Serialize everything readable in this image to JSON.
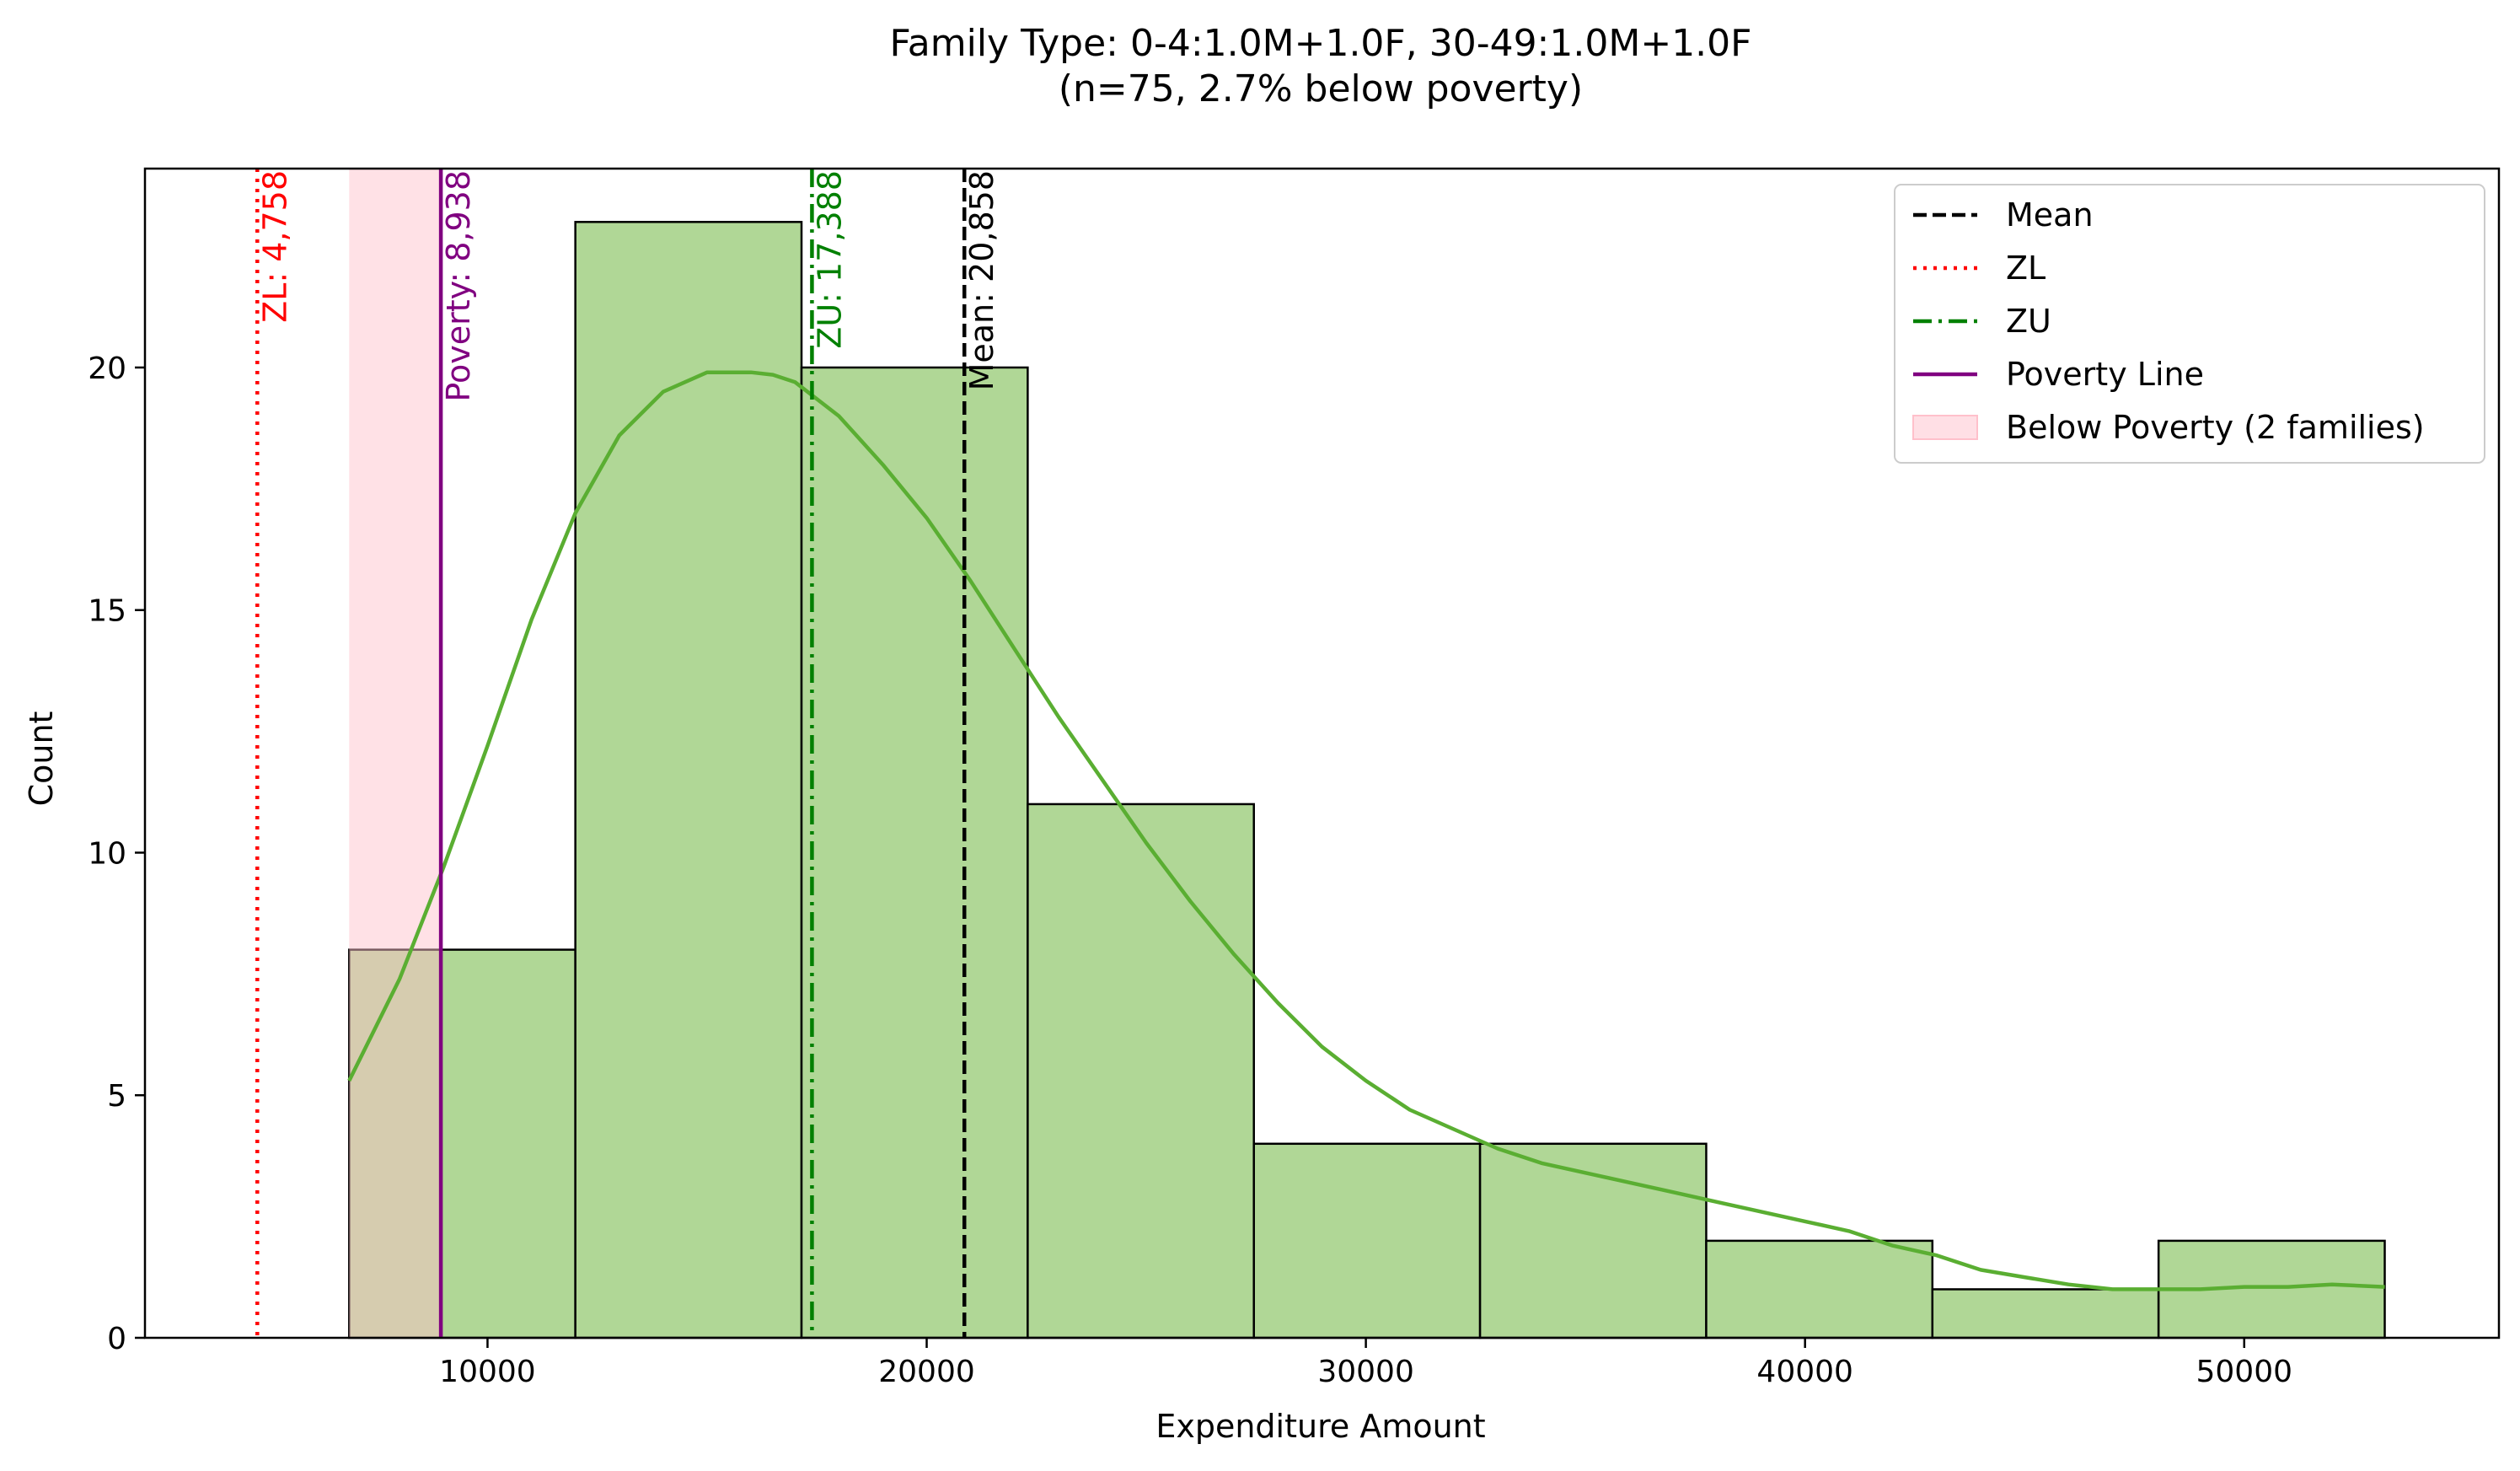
{
  "chart_data": {
    "type": "bar",
    "title": "Family Type: 0-4:1.0M+1.0F, 30-49:1.0M+1.0F",
    "subtitle": "(n=75, 2.7% below poverty)",
    "xlabel": "Expenditure Amount",
    "ylabel": "Count",
    "xlim": [
      2200,
      55800
    ],
    "ylim": [
      0,
      24.1
    ],
    "x_ticks": [
      {
        "value": 10000,
        "label": "10000"
      },
      {
        "value": 20000,
        "label": "20000"
      },
      {
        "value": 30000,
        "label": "30000"
      },
      {
        "value": 40000,
        "label": "40000"
      },
      {
        "value": 50000,
        "label": "50000"
      }
    ],
    "y_ticks": [
      {
        "value": 0,
        "label": "0"
      },
      {
        "value": 5,
        "label": "5"
      },
      {
        "value": 10,
        "label": "10"
      },
      {
        "value": 15,
        "label": "15"
      },
      {
        "value": 20,
        "label": "20"
      }
    ],
    "bins": [
      {
        "x0": 6850,
        "x1": 12000,
        "count": 8
      },
      {
        "x0": 12000,
        "x1": 17150,
        "count": 23
      },
      {
        "x0": 17150,
        "x1": 22300,
        "count": 20
      },
      {
        "x0": 22300,
        "x1": 27450,
        "count": 11
      },
      {
        "x0": 27450,
        "x1": 32600,
        "count": 4
      },
      {
        "x0": 32600,
        "x1": 37750,
        "count": 4
      },
      {
        "x0": 37750,
        "x1": 42900,
        "count": 2
      },
      {
        "x0": 42900,
        "x1": 48050,
        "count": 1
      },
      {
        "x0": 48050,
        "x1": 53200,
        "count": 2
      }
    ],
    "kde": {
      "x": [
        6850,
        8000,
        9000,
        10000,
        11000,
        12000,
        13000,
        14000,
        15000,
        16000,
        16500,
        17000,
        18000,
        19000,
        20000,
        21000,
        22000,
        23000,
        24000,
        25000,
        26000,
        27000,
        28000,
        29000,
        30000,
        31000,
        32000,
        33000,
        34000,
        35000,
        36000,
        37000,
        38000,
        39000,
        40000,
        41000,
        42000,
        43000,
        44000,
        45000,
        46000,
        47000,
        48000,
        49000,
        50000,
        51000,
        52000,
        53200
      ],
      "y": [
        5.3,
        7.4,
        9.7,
        12.2,
        14.8,
        17.0,
        18.6,
        19.5,
        19.9,
        19.9,
        19.85,
        19.7,
        19.0,
        18.0,
        16.9,
        15.6,
        14.2,
        12.8,
        11.5,
        10.2,
        9.0,
        7.9,
        6.9,
        6.0,
        5.3,
        4.7,
        4.3,
        3.9,
        3.6,
        3.4,
        3.2,
        3.0,
        2.8,
        2.6,
        2.4,
        2.2,
        1.9,
        1.7,
        1.4,
        1.25,
        1.1,
        1.0,
        1.0,
        1.0,
        1.05,
        1.05,
        1.1,
        1.05
      ]
    },
    "bar_color": "#b0d796",
    "kde_color": "#5aae32",
    "below_poverty_span": {
      "x0": 6850,
      "x1": 8938,
      "color": "#ffc0cb"
    },
    "reference_lines": [
      {
        "name": "Mean",
        "value": 20858,
        "label": "Mean: 20,858",
        "color": "#000000",
        "style": "dashed"
      },
      {
        "name": "ZL",
        "value": 4758,
        "label": "ZL: 4,758",
        "color": "#ff0000",
        "style": "dotted"
      },
      {
        "name": "ZU",
        "value": 17388,
        "label": "ZU: 17,388",
        "color": "#008000",
        "style": "dashdot"
      },
      {
        "name": "Poverty Line",
        "value": 8938,
        "label": "Poverty: 8,938",
        "color": "#800080",
        "style": "solid"
      }
    ],
    "legend": {
      "placement": "top-right",
      "entries": [
        {
          "label": "Mean",
          "color": "#000000",
          "style": "dashed"
        },
        {
          "label": "ZL",
          "color": "#ff0000",
          "style": "dotted"
        },
        {
          "label": "ZU",
          "color": "#008000",
          "style": "dashdot"
        },
        {
          "label": "Poverty Line",
          "color": "#800080",
          "style": "solid"
        },
        {
          "label": "Below Poverty (2 families)",
          "color": "#ffc0cb",
          "style": "patch"
        }
      ]
    },
    "grid": false
  }
}
